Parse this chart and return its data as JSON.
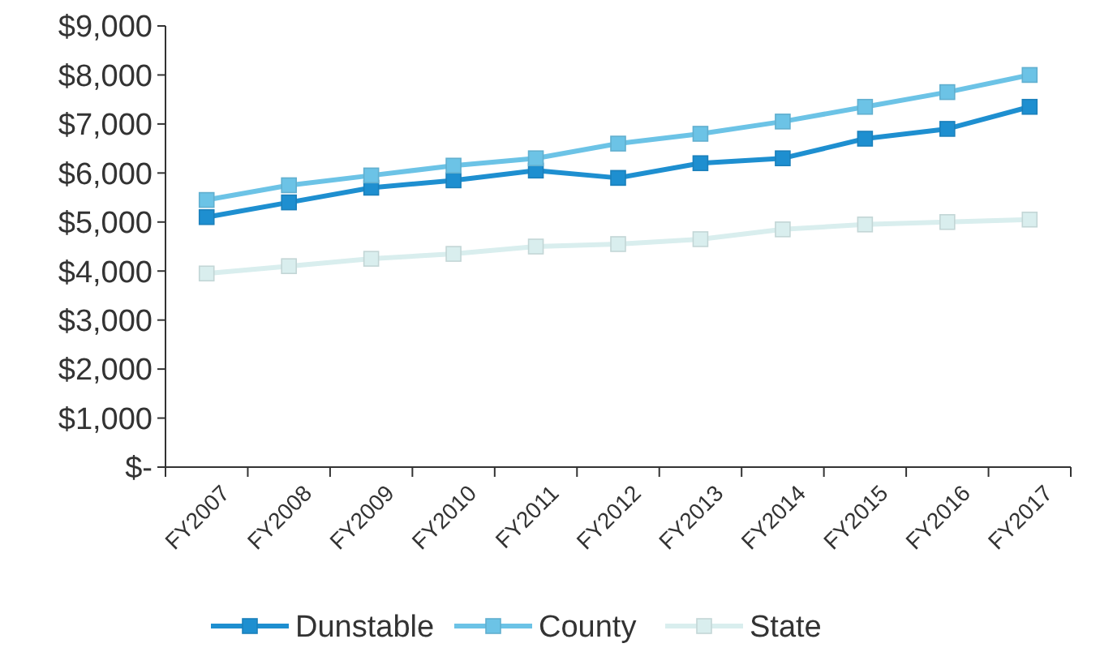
{
  "chart_data": {
    "type": "line",
    "categories": [
      "FY2007",
      "FY2008",
      "FY2009",
      "FY2010",
      "FY2011",
      "FY2012",
      "FY2013",
      "FY2014",
      "FY2015",
      "FY2016",
      "FY2017"
    ],
    "series": [
      {
        "name": "Dunstable",
        "color": "#1e8fd0",
        "values": [
          5100,
          5400,
          5700,
          5850,
          6050,
          5900,
          6200,
          6300,
          6700,
          6900,
          7350
        ]
      },
      {
        "name": "County",
        "color": "#6cc3e6",
        "values": [
          5450,
          5750,
          5950,
          6150,
          6300,
          6600,
          6800,
          7050,
          7350,
          7650,
          8000
        ]
      },
      {
        "name": "State",
        "color": "#d9eeee",
        "values": [
          3950,
          4100,
          4250,
          4350,
          4500,
          4550,
          4650,
          4850,
          4950,
          5000,
          5050
        ]
      }
    ],
    "ylim": [
      0,
      9000
    ],
    "yticks": [
      {
        "value": 0,
        "label": "$-"
      },
      {
        "value": 1000,
        "label": "$1,000"
      },
      {
        "value": 2000,
        "label": "$2,000"
      },
      {
        "value": 3000,
        "label": "$3,000"
      },
      {
        "value": 4000,
        "label": "$4,000"
      },
      {
        "value": 5000,
        "label": "$5,000"
      },
      {
        "value": 6000,
        "label": "$6,000"
      },
      {
        "value": 7000,
        "label": "$7,000"
      },
      {
        "value": 8000,
        "label": "$8,000"
      },
      {
        "value": 9000,
        "label": "$9,000"
      }
    ],
    "grid": false,
    "legend": "bottom",
    "marker": "square",
    "line_style": "solid"
  }
}
